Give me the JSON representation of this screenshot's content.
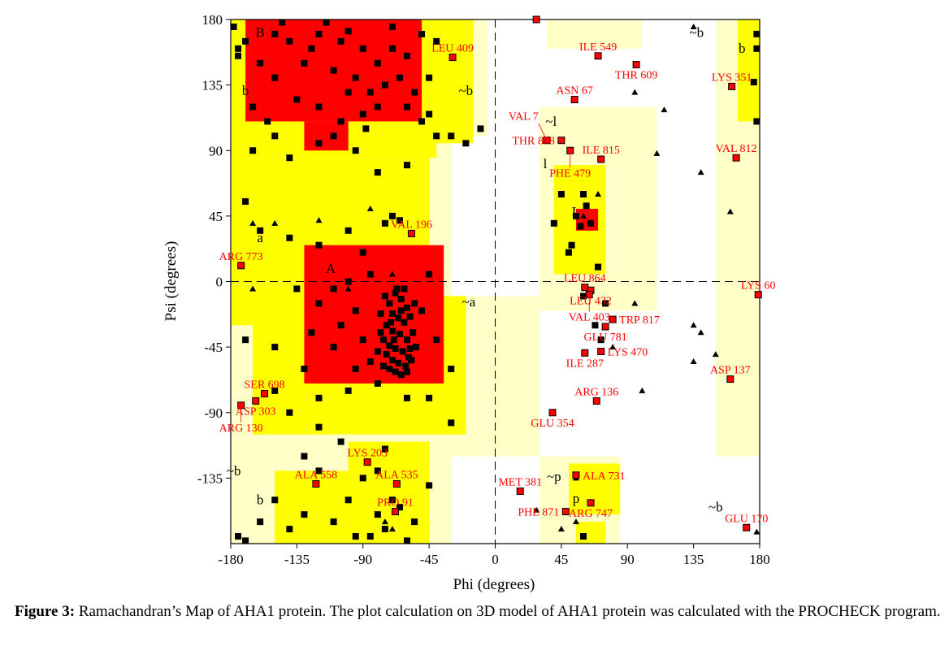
{
  "chart_data": {
    "type": "scatter",
    "title": "",
    "xlabel": "Phi (degrees)",
    "ylabel": "Psi (degrees)",
    "xlim": [
      -180,
      180
    ],
    "ylim": [
      -180,
      180
    ],
    "xticks": [
      "-180",
      "-135",
      "-90",
      "-45",
      "0",
      "45",
      "90",
      "135",
      "180"
    ],
    "yticks": [
      "-135",
      "-90",
      "-45",
      "0",
      "45",
      "90",
      "135",
      "180"
    ],
    "colors": {
      "generous": "#ffffc8",
      "allowed": "#ffff00",
      "core": "#ff0000",
      "residue": "#000000",
      "outlier": "#ff0000",
      "outlier_label": "#ff0000"
    },
    "regions": {
      "generous": [
        [
          -180,
          -5,
          100,
          180
        ],
        [
          -180,
          -30,
          -180,
          100
        ],
        [
          -30,
          30,
          -120,
          -10
        ],
        [
          30,
          110,
          -20,
          120
        ],
        [
          30,
          85,
          -180,
          -120
        ],
        [
          150,
          180,
          -120,
          180
        ],
        [
          35,
          100,
          160,
          180
        ]
      ],
      "allowed": [
        [
          -180,
          -40,
          85,
          180
        ],
        [
          -40,
          -15,
          95,
          180
        ],
        [
          -180,
          -45,
          -30,
          85
        ],
        [
          -165,
          -20,
          -105,
          -10
        ],
        [
          -150,
          -50,
          -180,
          -130
        ],
        [
          -100,
          -45,
          -180,
          -110
        ],
        [
          40,
          75,
          5,
          80
        ],
        [
          165,
          180,
          110,
          180
        ],
        [
          55,
          75,
          -180,
          -165
        ],
        [
          50,
          85,
          -160,
          -125
        ]
      ],
      "core": [
        [
          -170,
          -50,
          110,
          180
        ],
        [
          -130,
          -100,
          90,
          110
        ],
        [
          -130,
          -35,
          -70,
          25
        ],
        [
          55,
          70,
          35,
          50
        ]
      ]
    },
    "region_labels": [
      {
        "text": "B",
        "phi": -160,
        "psi": 168
      },
      {
        "text": "b",
        "phi": -170,
        "psi": 128
      },
      {
        "text": "A",
        "phi": -112,
        "psi": 6
      },
      {
        "text": "a",
        "phi": -160,
        "psi": 27
      },
      {
        "text": "~a",
        "phi": -18,
        "psi": -17
      },
      {
        "text": "~b",
        "phi": -20,
        "psi": 128
      },
      {
        "text": "~b",
        "phi": 137,
        "psi": 168
      },
      {
        "text": "b",
        "phi": 168,
        "psi": 157
      },
      {
        "text": "~l",
        "phi": 38,
        "psi": 107
      },
      {
        "text": "l",
        "phi": 34,
        "psi": 78
      },
      {
        "text": "L",
        "phi": 55,
        "psi": 45
      },
      {
        "text": "~b",
        "phi": -178,
        "psi": -133
      },
      {
        "text": "b",
        "phi": -160,
        "psi": -153
      },
      {
        "text": "~p",
        "phi": 40,
        "psi": -137
      },
      {
        "text": "p",
        "phi": 55,
        "psi": -152
      },
      {
        "text": "~b",
        "phi": 150,
        "psi": -158
      }
    ],
    "residues": [
      [
        -150,
        170
      ],
      [
        -140,
        165
      ],
      [
        -120,
        170
      ],
      [
        -100,
        172
      ],
      [
        -90,
        160
      ],
      [
        -80,
        150
      ],
      [
        -70,
        160
      ],
      [
        -60,
        155
      ],
      [
        -130,
        150
      ],
      [
        -110,
        145
      ],
      [
        -95,
        140
      ],
      [
        -85,
        130
      ],
      [
        -75,
        135
      ],
      [
        -65,
        140
      ],
      [
        -55,
        130
      ],
      [
        -45,
        140
      ],
      [
        -150,
        140
      ],
      [
        -160,
        150
      ],
      [
        -170,
        165
      ],
      [
        -175,
        155
      ],
      [
        -135,
        125
      ],
      [
        -120,
        120
      ],
      [
        -105,
        110
      ],
      [
        -90,
        115
      ],
      [
        -80,
        120
      ],
      [
        -60,
        120
      ],
      [
        -50,
        110
      ],
      [
        -40,
        100
      ],
      [
        -30,
        100
      ],
      [
        -20,
        95
      ],
      [
        -10,
        105
      ],
      [
        -150,
        100
      ],
      [
        -165,
        90
      ],
      [
        -140,
        85
      ],
      [
        -120,
        95
      ],
      [
        -95,
        90
      ],
      [
        -80,
        75
      ],
      [
        -60,
        80
      ],
      [
        -45,
        115
      ],
      [
        -125,
        160
      ],
      [
        -115,
        178
      ],
      [
        -105,
        165
      ],
      [
        -70,
        175
      ],
      [
        -145,
        178
      ],
      [
        -165,
        120
      ],
      [
        -155,
        110
      ],
      [
        -100,
        130
      ],
      [
        -110,
        100
      ],
      [
        -40,
        165
      ],
      [
        -50,
        170
      ],
      [
        -88,
        105
      ],
      [
        -160,
        35
      ],
      [
        -140,
        30
      ],
      [
        -120,
        25
      ],
      [
        -100,
        35
      ],
      [
        -90,
        20
      ],
      [
        -75,
        40
      ],
      [
        -70,
        45
      ],
      [
        -65,
        42
      ],
      [
        -85,
        5
      ],
      [
        -100,
        0
      ],
      [
        -110,
        -5
      ],
      [
        -120,
        -15
      ],
      [
        -95,
        -20
      ],
      [
        -105,
        -30
      ],
      [
        -90,
        -40
      ],
      [
        -85,
        -55
      ],
      [
        -95,
        -60
      ],
      [
        -110,
        -45
      ],
      [
        -125,
        -35
      ],
      [
        -130,
        -60
      ],
      [
        -150,
        -75
      ],
      [
        -140,
        -90
      ],
      [
        -120,
        -80
      ],
      [
        -100,
        -75
      ],
      [
        -80,
        -70
      ],
      [
        -60,
        -80
      ],
      [
        -45,
        -80
      ],
      [
        -30,
        -60
      ],
      [
        -40,
        -40
      ],
      [
        -50,
        -20
      ],
      [
        -45,
        5
      ],
      [
        -120,
        -100
      ],
      [
        -30,
        -97
      ],
      [
        -170,
        -40
      ],
      [
        -150,
        -45
      ],
      [
        -135,
        -5
      ],
      [
        -170,
        55
      ],
      [
        -75,
        -10
      ],
      [
        -72,
        -15
      ],
      [
        -68,
        -8
      ],
      [
        -64,
        -12
      ],
      [
        -60,
        -18
      ],
      [
        -70,
        -22
      ],
      [
        -66,
        -25
      ],
      [
        -62,
        -28
      ],
      [
        -58,
        -24
      ],
      [
        -74,
        -30
      ],
      [
        -70,
        -34
      ],
      [
        -65,
        -36
      ],
      [
        -60,
        -40
      ],
      [
        -56,
        -35
      ],
      [
        -76,
        -40
      ],
      [
        -72,
        -44
      ],
      [
        -68,
        -46
      ],
      [
        -63,
        -48
      ],
      [
        -58,
        -46
      ],
      [
        -74,
        -50
      ],
      [
        -70,
        -54
      ],
      [
        -66,
        -56
      ],
      [
        -61,
        -58
      ],
      [
        -57,
        -54
      ],
      [
        -72,
        -60
      ],
      [
        -68,
        -62
      ],
      [
        -64,
        -64
      ],
      [
        -60,
        -62
      ],
      [
        -78,
        -35
      ],
      [
        -78,
        -22
      ],
      [
        -55,
        -15
      ],
      [
        -54,
        -45
      ],
      [
        -67,
        -5
      ],
      [
        -62,
        -5
      ],
      [
        -80,
        -48
      ],
      [
        -76,
        -58
      ],
      [
        -69,
        -40
      ],
      [
        -64,
        -20
      ],
      [
        -71,
        -28
      ],
      [
        -59,
        -52
      ],
      [
        60,
        60
      ],
      [
        55,
        45
      ],
      [
        65,
        40
      ],
      [
        45,
        60
      ],
      [
        40,
        40
      ],
      [
        52,
        25
      ],
      [
        70,
        10
      ],
      [
        75,
        -15
      ],
      [
        68,
        -30
      ],
      [
        60,
        -10
      ],
      [
        50,
        20
      ],
      [
        58,
        38
      ],
      [
        62,
        52
      ],
      [
        72,
        -40
      ],
      [
        -175,
        -175
      ],
      [
        -170,
        -178
      ],
      [
        -160,
        -165
      ],
      [
        -150,
        -150
      ],
      [
        -140,
        -170
      ],
      [
        -130,
        -160
      ],
      [
        -120,
        -130
      ],
      [
        -110,
        -165
      ],
      [
        -100,
        -150
      ],
      [
        -95,
        -175
      ],
      [
        -90,
        -135
      ],
      [
        -80,
        -160
      ],
      [
        -75,
        -170
      ],
      [
        -70,
        -150
      ],
      [
        -65,
        -155
      ],
      [
        -60,
        -178
      ],
      [
        -55,
        -165
      ],
      [
        -105,
        -110
      ],
      [
        -130,
        -120
      ],
      [
        -75,
        -115
      ],
      [
        -80,
        -130
      ],
      [
        -85,
        -175
      ],
      [
        60,
        -175
      ],
      [
        -45,
        -140
      ],
      [
        178,
        170
      ],
      [
        178,
        160
      ],
      [
        178,
        110
      ],
      [
        176,
        137
      ],
      [
        -178,
        175
      ],
      [
        -175,
        160
      ]
    ],
    "glycines": [
      [
        -165,
        -5
      ],
      [
        -165,
        40
      ],
      [
        -150,
        40
      ],
      [
        -70,
        5
      ],
      [
        60,
        45
      ],
      [
        45,
        -170
      ],
      [
        28,
        -157
      ],
      [
        55,
        -165
      ],
      [
        95,
        -15
      ],
      [
        140,
        -35
      ],
      [
        150,
        -50
      ],
      [
        135,
        -55
      ],
      [
        135,
        -30
      ],
      [
        100,
        -75
      ],
      [
        95,
        130
      ],
      [
        115,
        118
      ],
      [
        110,
        88
      ],
      [
        140,
        75
      ],
      [
        160,
        48
      ],
      [
        55,
        -135
      ],
      [
        -70,
        -170
      ],
      [
        -65,
        -155
      ],
      [
        80,
        -45
      ],
      [
        -75,
        -165
      ],
      [
        135,
        175
      ],
      [
        178,
        -172
      ],
      [
        70,
        60
      ],
      [
        -100,
        -5
      ],
      [
        -85,
        50
      ],
      [
        -120,
        42
      ]
    ],
    "outliers": [
      {
        "label": "LEU 409",
        "phi": -29,
        "psi": 154
      },
      {
        "label": "ILE 549",
        "phi": 70,
        "psi": 155
      },
      {
        "label": "THR 609",
        "phi": 96,
        "psi": 149
      },
      {
        "label": "ASN 67",
        "phi": 54,
        "psi": 125
      },
      {
        "label": "LYS 351",
        "phi": 161,
        "psi": 134
      },
      {
        "label": "VAL 812",
        "phi": 164,
        "psi": 85
      },
      {
        "label": "ILE 815",
        "phi": 72,
        "psi": 84
      },
      {
        "label": "PHE 479",
        "phi": 51,
        "psi": 90
      },
      {
        "label": "THR 868",
        "phi": 45,
        "psi": 97
      },
      {
        "label": "VAL 7",
        "phi": 35,
        "psi": 97
      },
      {
        "label": "VAL 196",
        "phi": -57,
        "psi": 33
      },
      {
        "label": "ARG 773",
        "phi": -173,
        "psi": 11
      },
      {
        "label": "LYS 60",
        "phi": 179,
        "psi": -9
      },
      {
        "label": "LEU 864",
        "phi": 61,
        "psi": -4
      },
      {
        "label": "LEU 432",
        "phi": 65,
        "psi": -6
      },
      {
        "label": "VAL 403",
        "phi": 64,
        "psi": -9
      },
      {
        "label": "TRP 817",
        "phi": 80,
        "psi": -26
      },
      {
        "label": "GLU 781",
        "phi": 75,
        "psi": -31
      },
      {
        "label": "ILE 287",
        "phi": 61,
        "psi": -49
      },
      {
        "label": "LYS 470",
        "phi": 72,
        "psi": -48
      },
      {
        "label": "ASP 137",
        "phi": 160,
        "psi": -67
      },
      {
        "label": "ARG 136",
        "phi": 69,
        "psi": -82
      },
      {
        "label": "GLU 354",
        "phi": 39,
        "psi": -90
      },
      {
        "label": "SER 698",
        "phi": -157,
        "psi": -77
      },
      {
        "label": "ASP 303",
        "phi": -163,
        "psi": -82
      },
      {
        "label": "ARG 130",
        "phi": -173,
        "psi": -85
      },
      {
        "label": "LYS 203",
        "phi": -87,
        "psi": -124
      },
      {
        "label": "ALA 558",
        "phi": -122,
        "psi": -139
      },
      {
        "label": "ALA 535",
        "phi": -67,
        "psi": -139
      },
      {
        "label": "PRO 91",
        "phi": -68,
        "psi": -158
      },
      {
        "label": "MET 381",
        "phi": 17,
        "psi": -144
      },
      {
        "label": "ALA 731",
        "phi": 55,
        "psi": -133
      },
      {
        "label": "ARG 747",
        "phi": 65,
        "psi": -152
      },
      {
        "label": "PHE 871",
        "phi": 48,
        "psi": -158
      },
      {
        "label": "GLU 170",
        "phi": 171,
        "psi": -169
      },
      {
        "label": "",
        "phi": 28,
        "psi": 180
      }
    ]
  },
  "caption": {
    "figure_label": "Figure 3:",
    "text": " Ramachandran’s Map of AHA1 protein. The plot calculation on 3D model of AHA1 protein was calculated with the PROCHECK program."
  }
}
